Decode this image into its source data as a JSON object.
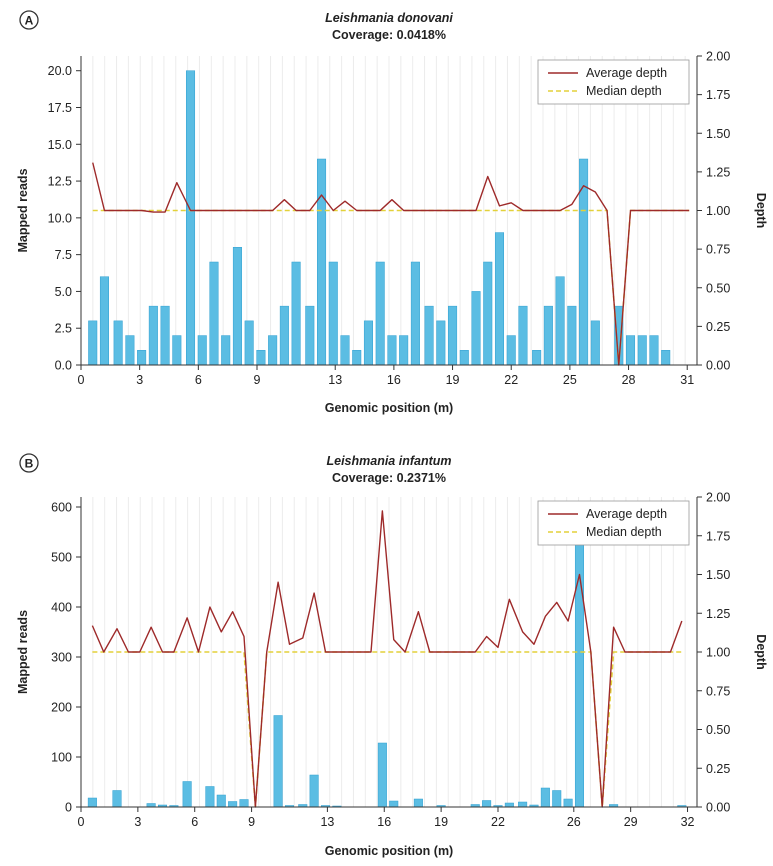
{
  "colors": {
    "bar": "#5bbde3",
    "bar_stroke": "#2f9fd0",
    "avg_line": "#9e2a2a",
    "median_line": "#e3d13a",
    "grid": "#ececec",
    "axis": "#333333"
  },
  "chart_data": [
    {
      "panel_label": "A",
      "type": "bar+line",
      "title": "Leishmania donovani",
      "subtitle": "Coverage: 0.0418%",
      "xlabel": "Genomic position (m)",
      "ylabel_left": "Mapped reads",
      "ylabel_right": "Depth",
      "xlim": [
        0,
        31.5
      ],
      "ylim_left": [
        0,
        21
      ],
      "ylim_right": [
        0,
        2.0
      ],
      "xticks": [
        0,
        3,
        6,
        9,
        13,
        16,
        19,
        22,
        25,
        28,
        31
      ],
      "xtick_labels": [
        "0",
        "3",
        "6",
        "9",
        "13",
        "16",
        "19",
        "22",
        "25",
        "28",
        "31"
      ],
      "yticks_left": [
        0.0,
        2.5,
        5.0,
        7.5,
        10.0,
        12.5,
        15.0,
        17.5,
        20.0
      ],
      "yticks_left_labels": [
        "0.0",
        "2.5",
        "5.0",
        "7.5",
        "10.0",
        "12.5",
        "15.0",
        "17.5",
        "20.0"
      ],
      "yticks_right": [
        0.0,
        0.25,
        0.5,
        0.75,
        1.0,
        1.25,
        1.5,
        1.75,
        2.0
      ],
      "yticks_right_labels": [
        "0.00",
        "0.25",
        "0.50",
        "0.75",
        "1.00",
        "1.25",
        "1.50",
        "1.75",
        "2.00"
      ],
      "legend": [
        "Average depth",
        "Median depth"
      ],
      "legend_position": "top-right",
      "bars": {
        "x": [
          0.6,
          1.2,
          1.9,
          2.5,
          3.1,
          3.7,
          4.3,
          4.9,
          5.6,
          6.2,
          6.8,
          7.4,
          8.0,
          8.6,
          9.2,
          9.8,
          10.4,
          11.0,
          11.7,
          12.3,
          12.9,
          13.5,
          14.1,
          14.7,
          15.3,
          15.9,
          16.5,
          17.1,
          17.8,
          18.4,
          19.0,
          19.6,
          20.2,
          20.8,
          21.4,
          22.0,
          22.6,
          23.3,
          23.9,
          24.5,
          25.1,
          25.7,
          26.3,
          26.9,
          27.5,
          28.1,
          28.7,
          29.3,
          29.9,
          30.5,
          31.1
        ],
        "values": [
          3,
          6,
          3,
          2,
          1,
          4,
          4,
          2,
          20,
          2,
          7,
          2,
          8,
          3,
          1,
          2,
          4,
          7,
          4,
          14,
          7,
          2,
          1,
          3,
          7,
          2,
          2,
          7,
          4,
          3,
          4,
          1,
          5,
          7,
          9,
          2,
          4,
          1,
          4,
          6,
          4,
          14,
          3,
          0,
          4,
          2,
          2,
          2,
          1,
          0,
          0
        ]
      },
      "average_depth": {
        "x": [
          0.6,
          1.2,
          1.9,
          2.5,
          3.1,
          3.7,
          4.3,
          4.9,
          5.6,
          6.2,
          6.8,
          7.4,
          8.0,
          8.6,
          9.2,
          9.8,
          10.4,
          11.0,
          11.7,
          12.3,
          12.9,
          13.5,
          14.1,
          14.7,
          15.3,
          15.9,
          16.5,
          17.1,
          17.8,
          18.4,
          19.0,
          19.6,
          20.2,
          20.8,
          21.4,
          22.0,
          22.6,
          23.3,
          23.9,
          24.5,
          25.1,
          25.7,
          26.3,
          26.9,
          27.5,
          28.1,
          28.7,
          29.3,
          29.9,
          30.5,
          31.1
        ],
        "values": [
          1.31,
          1.0,
          1.0,
          1.0,
          1.0,
          0.99,
          0.99,
          1.18,
          1.0,
          1.0,
          1.0,
          1.0,
          1.0,
          1.0,
          1.0,
          1.0,
          1.07,
          1.0,
          1.0,
          1.1,
          1.0,
          1.06,
          1.0,
          1.0,
          1.0,
          1.07,
          1.0,
          1.0,
          1.0,
          1.0,
          1.0,
          1.0,
          1.0,
          1.22,
          1.03,
          1.05,
          1.0,
          1.0,
          1.0,
          1.0,
          1.04,
          1.16,
          1.12,
          1.0,
          0.0,
          1.0,
          1.0,
          1.0,
          1.0,
          1.0,
          1.0
        ]
      },
      "median_depth": {
        "x": [
          0.6,
          26.3,
          26.9,
          27.5,
          28.1,
          31.1
        ],
        "values": [
          1.0,
          1.0,
          1.0,
          0.0,
          1.0,
          1.0
        ]
      }
    },
    {
      "panel_label": "B",
      "type": "bar+line",
      "title": "Leishmania infantum",
      "subtitle": "Coverage: 0.2371%",
      "xlabel": "Genomic position (m)",
      "ylabel_left": "Mapped reads",
      "ylabel_right": "Depth",
      "xlim": [
        0,
        32.5
      ],
      "ylim_left": [
        0,
        620
      ],
      "ylim_right": [
        0,
        2.0
      ],
      "xticks": [
        0,
        3,
        6,
        9,
        13,
        16,
        19,
        22,
        26,
        29,
        32
      ],
      "xtick_labels": [
        "0",
        "3",
        "6",
        "9",
        "13",
        "16",
        "19",
        "22",
        "26",
        "29",
        "32"
      ],
      "yticks_left": [
        0,
        100,
        200,
        300,
        400,
        500,
        600
      ],
      "yticks_left_labels": [
        "0",
        "100",
        "200",
        "300",
        "400",
        "500",
        "600"
      ],
      "yticks_right": [
        0.0,
        0.25,
        0.5,
        0.75,
        1.0,
        1.25,
        1.5,
        1.75,
        2.0
      ],
      "yticks_right_labels": [
        "0.00",
        "0.25",
        "0.50",
        "0.75",
        "1.00",
        "1.25",
        "1.50",
        "1.75",
        "2.00"
      ],
      "legend": [
        "Average depth",
        "Median depth"
      ],
      "legend_position": "top-right",
      "bars": {
        "x": [
          0.6,
          1.2,
          1.9,
          2.5,
          3.1,
          3.7,
          4.3,
          4.9,
          5.6,
          6.2,
          6.8,
          7.4,
          8.0,
          8.6,
          9.2,
          9.8,
          10.4,
          11.0,
          11.7,
          12.3,
          12.9,
          13.5,
          14.1,
          14.7,
          15.3,
          15.9,
          16.5,
          17.1,
          17.8,
          18.4,
          19.0,
          19.6,
          20.2,
          20.8,
          21.4,
          22.0,
          22.6,
          23.3,
          23.9,
          24.5,
          25.1,
          25.7,
          26.3,
          26.9,
          27.5,
          28.1,
          28.7,
          29.3,
          29.9,
          30.5,
          31.1,
          31.7
        ],
        "values": [
          18,
          0,
          33,
          0,
          0,
          7,
          4,
          3,
          51,
          0,
          41,
          24,
          11,
          15,
          0,
          0,
          183,
          3,
          5,
          64,
          3,
          2,
          0,
          0,
          0,
          128,
          12,
          0,
          16,
          0,
          3,
          0,
          0,
          5,
          13,
          3,
          8,
          10,
          4,
          38,
          33,
          16,
          575,
          0,
          0,
          5,
          0,
          0,
          0,
          0,
          0,
          3
        ]
      },
      "average_depth": {
        "x": [
          0.6,
          1.2,
          1.9,
          2.5,
          3.1,
          3.7,
          4.3,
          4.9,
          5.6,
          6.2,
          6.8,
          7.4,
          8.0,
          8.6,
          9.2,
          9.8,
          10.4,
          11.0,
          11.7,
          12.3,
          12.9,
          13.5,
          14.1,
          14.7,
          15.3,
          15.9,
          16.5,
          17.1,
          17.8,
          18.4,
          19.0,
          19.6,
          20.2,
          20.8,
          21.4,
          22.0,
          22.6,
          23.3,
          23.9,
          24.5,
          25.1,
          25.7,
          26.3,
          26.9,
          27.5,
          28.1,
          28.7,
          29.3,
          29.9,
          30.5,
          31.1,
          31.7
        ],
        "values": [
          1.17,
          1.0,
          1.15,
          1.0,
          1.0,
          1.16,
          1.0,
          1.0,
          1.22,
          1.0,
          1.29,
          1.13,
          1.26,
          1.1,
          0.0,
          1.0,
          1.45,
          1.05,
          1.09,
          1.38,
          1.0,
          1.0,
          1.0,
          1.0,
          1.0,
          1.91,
          1.08,
          1.0,
          1.26,
          1.0,
          1.0,
          1.0,
          1.0,
          1.0,
          1.1,
          1.03,
          1.34,
          1.13,
          1.05,
          1.23,
          1.32,
          1.2,
          1.5,
          1.0,
          0.0,
          1.16,
          1.0,
          1.0,
          1.0,
          1.0,
          1.0,
          1.2
        ]
      },
      "median_depth": {
        "x": [
          0.6,
          8.6,
          9.2,
          9.8,
          26.9,
          27.5,
          28.1,
          31.7
        ],
        "values": [
          1.0,
          1.0,
          0.0,
          1.0,
          1.0,
          0.0,
          1.0,
          1.0
        ]
      }
    }
  ]
}
